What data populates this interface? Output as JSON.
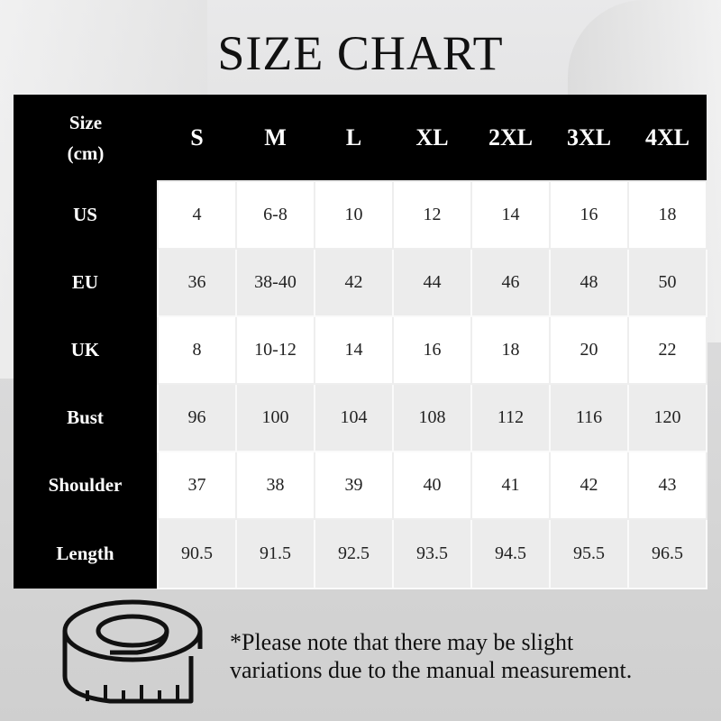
{
  "title": "SIZE CHART",
  "table": {
    "corner": [
      "Size",
      "(cm)"
    ],
    "sizes": [
      "S",
      "M",
      "L",
      "XL",
      "2XL",
      "3XL",
      "4XL"
    ],
    "rows": [
      {
        "label": "US",
        "values": [
          "4",
          "6-8",
          "10",
          "12",
          "14",
          "16",
          "18"
        ]
      },
      {
        "label": "EU",
        "values": [
          "36",
          "38-40",
          "42",
          "44",
          "46",
          "48",
          "50"
        ]
      },
      {
        "label": "UK",
        "values": [
          "8",
          "10-12",
          "14",
          "16",
          "18",
          "20",
          "22"
        ]
      },
      {
        "label": "Bust",
        "values": [
          "96",
          "100",
          "104",
          "108",
          "112",
          "116",
          "120"
        ]
      },
      {
        "label": "Shoulder",
        "values": [
          "37",
          "38",
          "39",
          "40",
          "41",
          "42",
          "43"
        ]
      },
      {
        "label": "Length",
        "values": [
          "90.5",
          "91.5",
          "92.5",
          "93.5",
          "94.5",
          "95.5",
          "96.5"
        ]
      }
    ]
  },
  "note": [
    "*Please note that there may be slight",
    "variations due to the manual measurement."
  ],
  "icons": {
    "measure": "tape-measure-icon"
  },
  "colors": {
    "header": "#000000",
    "text": "#111111"
  }
}
